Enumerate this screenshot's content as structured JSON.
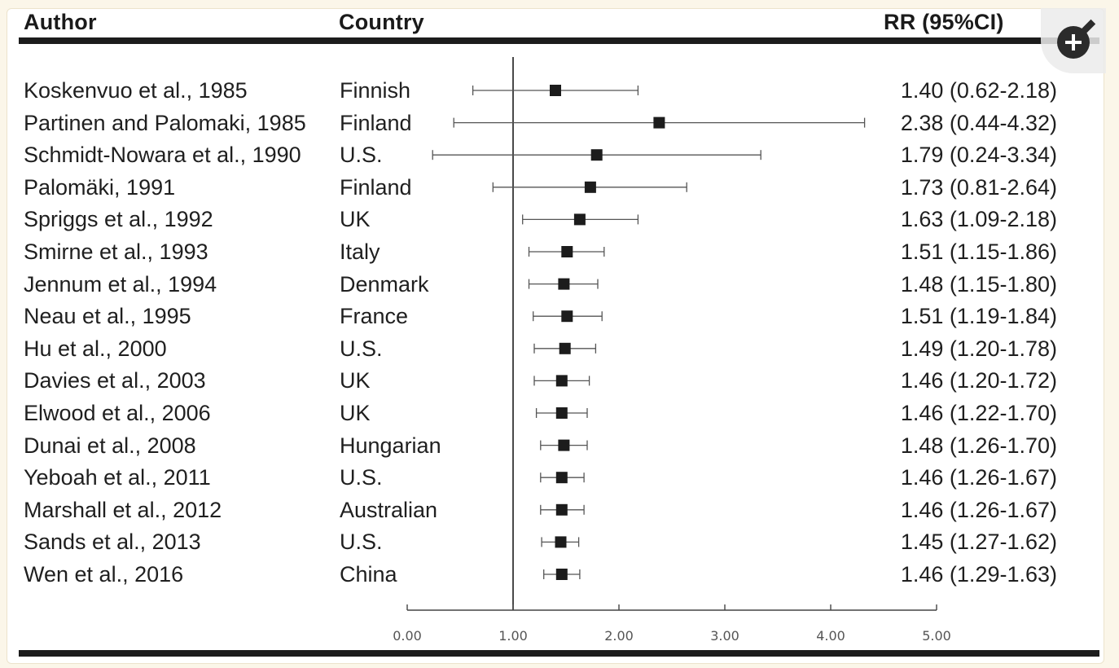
{
  "headers": {
    "author": "Author",
    "country": "Country",
    "rr": "RR (95%CI)"
  },
  "rows": [
    {
      "author": "Koskenvuo et al., 1985",
      "country": "Finnish",
      "rr_text": "1.40 (0.62-2.18)"
    },
    {
      "author": "Partinen and Palomaki, 1985",
      "country": "Finland",
      "rr_text": "2.38 (0.44-4.32)"
    },
    {
      "author": "Schmidt-Nowara et al., 1990",
      "country": "U.S.",
      "rr_text": "1.79 (0.24-3.34)"
    },
    {
      "author": "Palomäki, 1991",
      "country": "Finland",
      "rr_text": "1.73 (0.81-2.64)"
    },
    {
      "author": "Spriggs et al., 1992",
      "country": "UK",
      "rr_text": "1.63 (1.09-2.18)"
    },
    {
      "author": "Smirne et al., 1993",
      "country": "Italy",
      "rr_text": "1.51 (1.15-1.86)"
    },
    {
      "author": "Jennum et al., 1994",
      "country": "Denmark",
      "rr_text": "1.48 (1.15-1.80)"
    },
    {
      "author": "Neau et al., 1995",
      "country": "France",
      "rr_text": "1.51 (1.19-1.84)"
    },
    {
      "author": "Hu et al., 2000",
      "country": "U.S.",
      "rr_text": "1.49 (1.20-1.78)"
    },
    {
      "author": "Davies et al., 2003",
      "country": "UK",
      "rr_text": "1.46 (1.20-1.72)"
    },
    {
      "author": "Elwood et al., 2006",
      "country": "UK",
      "rr_text": "1.46 (1.22-1.70)"
    },
    {
      "author": "Dunai et al., 2008",
      "country": "Hungarian",
      "rr_text": "1.48 (1.26-1.70)"
    },
    {
      "author": "Yeboah et al., 2011",
      "country": "U.S.",
      "rr_text": "1.46 (1.26-1.67)"
    },
    {
      "author": "Marshall et al., 2012",
      "country": "Australian",
      "rr_text": "1.46 (1.26-1.67)"
    },
    {
      "author": "Sands et al., 2013",
      "country": "U.S.",
      "rr_text": "1.45 (1.27-1.62)"
    },
    {
      "author": "Wen et al., 2016",
      "country": "China",
      "rr_text": "1.46 (1.29-1.63)"
    }
  ],
  "chart_data": {
    "type": "scatter",
    "subtype": "forest-plot",
    "xlim": [
      0,
      5
    ],
    "reference_line": 1.0,
    "x_ticks": [
      "0.00",
      "1.00",
      "2.00",
      "3.00",
      "4.00",
      "5.00"
    ],
    "series": [
      {
        "points": [
          {
            "study": "Koskenvuo et al., 1985",
            "rr": 1.4,
            "low": 0.62,
            "high": 2.18
          },
          {
            "study": "Partinen and Palomaki, 1985",
            "rr": 2.38,
            "low": 0.44,
            "high": 4.32
          },
          {
            "study": "Schmidt-Nowara et al., 1990",
            "rr": 1.79,
            "low": 0.24,
            "high": 3.34
          },
          {
            "study": "Palomäki, 1991",
            "rr": 1.73,
            "low": 0.81,
            "high": 2.64
          },
          {
            "study": "Spriggs et al., 1992",
            "rr": 1.63,
            "low": 1.09,
            "high": 2.18
          },
          {
            "study": "Smirne et al., 1993",
            "rr": 1.51,
            "low": 1.15,
            "high": 1.86
          },
          {
            "study": "Jennum et al., 1994",
            "rr": 1.48,
            "low": 1.15,
            "high": 1.8
          },
          {
            "study": "Neau et al., 1995",
            "rr": 1.51,
            "low": 1.19,
            "high": 1.84
          },
          {
            "study": "Hu et al., 2000",
            "rr": 1.49,
            "low": 1.2,
            "high": 1.78
          },
          {
            "study": "Davies et al., 2003",
            "rr": 1.46,
            "low": 1.2,
            "high": 1.72
          },
          {
            "study": "Elwood et al., 2006",
            "rr": 1.46,
            "low": 1.22,
            "high": 1.7
          },
          {
            "study": "Dunai et al., 2008",
            "rr": 1.48,
            "low": 1.26,
            "high": 1.7
          },
          {
            "study": "Yeboah et al., 2011",
            "rr": 1.46,
            "low": 1.26,
            "high": 1.67
          },
          {
            "study": "Marshall et al., 2012",
            "rr": 1.46,
            "low": 1.26,
            "high": 1.67
          },
          {
            "study": "Sands et al., 2013",
            "rr": 1.45,
            "low": 1.27,
            "high": 1.62
          },
          {
            "study": "Wen et al., 2016",
            "rr": 1.46,
            "low": 1.29,
            "high": 1.63
          }
        ]
      }
    ]
  },
  "ui": {
    "zoom_icon": "zoom-in-icon"
  },
  "colors": {
    "background": "#fbf6e9",
    "ink": "#1c1c1c",
    "whisker": "#555555",
    "tick_label": "#555555"
  }
}
